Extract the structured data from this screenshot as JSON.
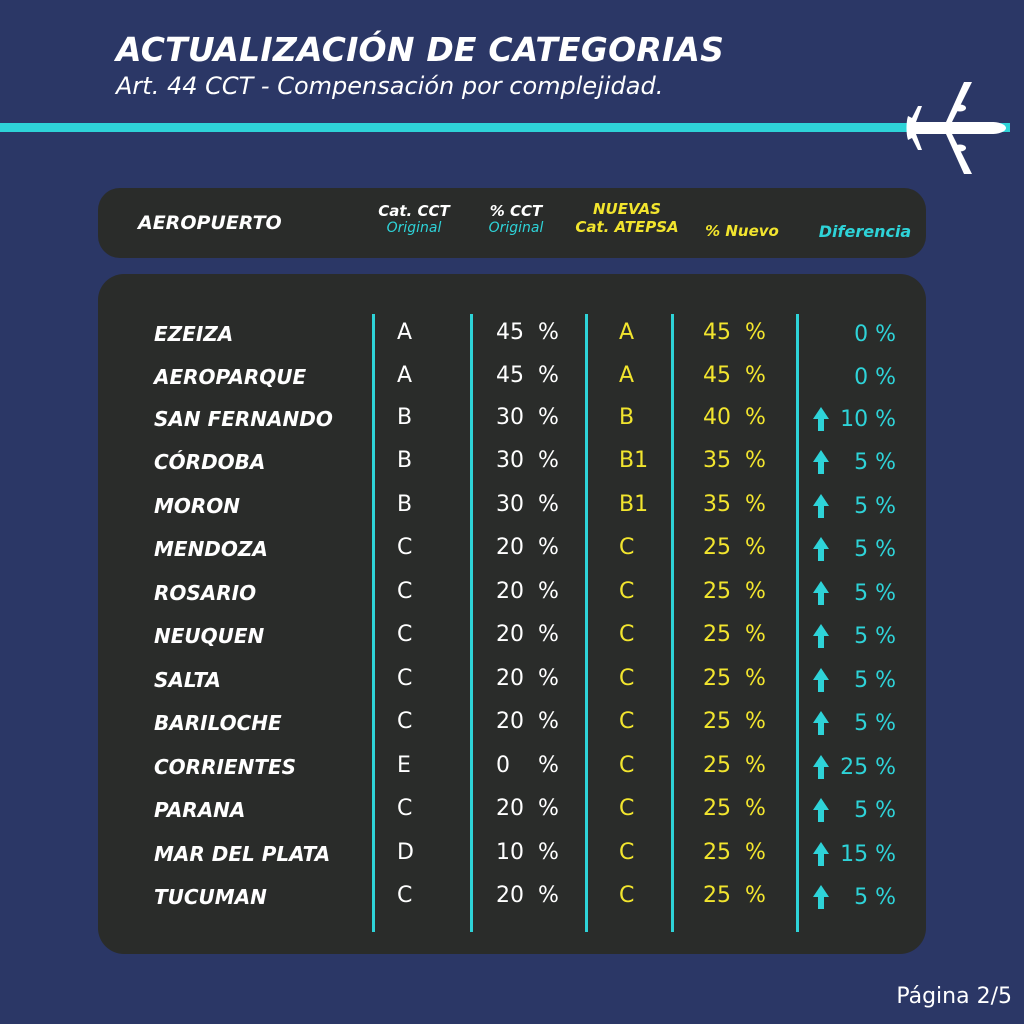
{
  "title": "ACTUALIZACIÓN DE CATEGORIAS",
  "subtitle": "Art. 44 CCT - Compensación por complejidad.",
  "colors": {
    "background": "#2b3766",
    "panel": "#2a2c2a",
    "accent": "#2ed3d8",
    "highlight": "#f2e52e"
  },
  "header": {
    "airport": "AEROPUERTO",
    "cat_cct": "Cat. CCT",
    "cat_cct_sub": "Original",
    "pct_cct": "% CCT",
    "pct_cct_sub": "Original",
    "new_cat_l1": "NUEVAS",
    "new_cat_l2": "Cat. ATEPSA",
    "pct_new": "% Nuevo",
    "diff": "Diferencia"
  },
  "rows": [
    {
      "airport": "EZEIZA",
      "cat": "A",
      "pct": "45  %",
      "new_cat": "A",
      "pct_new": "45  %",
      "diff": "0 %",
      "up": false
    },
    {
      "airport": "AEROPARQUE",
      "cat": "A",
      "pct": "45  %",
      "new_cat": "A",
      "pct_new": "45  %",
      "diff": "0 %",
      "up": false
    },
    {
      "airport": "SAN FERNANDO",
      "cat": "B",
      "pct": "30  %",
      "new_cat": "B",
      "pct_new": "40  %",
      "diff": "10 %",
      "up": true
    },
    {
      "airport": "CÓRDOBA",
      "cat": "B",
      "pct": "30  %",
      "new_cat": "B1",
      "pct_new": "35  %",
      "diff": "5 %",
      "up": true
    },
    {
      "airport": "MORON",
      "cat": "B",
      "pct": "30  %",
      "new_cat": "B1",
      "pct_new": "35  %",
      "diff": "5 %",
      "up": true
    },
    {
      "airport": "MENDOZA",
      "cat": "C",
      "pct": "20  %",
      "new_cat": "C",
      "pct_new": "25  %",
      "diff": "5 %",
      "up": true
    },
    {
      "airport": "ROSARIO",
      "cat": "C",
      "pct": "20  %",
      "new_cat": "C",
      "pct_new": "25  %",
      "diff": "5 %",
      "up": true
    },
    {
      "airport": "NEUQUEN",
      "cat": "C",
      "pct": "20  %",
      "new_cat": "C",
      "pct_new": "25  %",
      "diff": "5 %",
      "up": true
    },
    {
      "airport": "SALTA",
      "cat": "C",
      "pct": "20  %",
      "new_cat": "C",
      "pct_new": "25  %",
      "diff": "5 %",
      "up": true
    },
    {
      "airport": "BARILOCHE",
      "cat": "C",
      "pct": "20  %",
      "new_cat": "C",
      "pct_new": "25  %",
      "diff": "5 %",
      "up": true
    },
    {
      "airport": "CORRIENTES",
      "cat": "E",
      "pct": "0    %",
      "new_cat": "C",
      "pct_new": "25  %",
      "diff": "25 %",
      "up": true
    },
    {
      "airport": "PARANA",
      "cat": "C",
      "pct": "20  %",
      "new_cat": "C",
      "pct_new": "25  %",
      "diff": "5 %",
      "up": true
    },
    {
      "airport": "MAR DEL PLATA",
      "cat": "D",
      "pct": "10  %",
      "new_cat": "C",
      "pct_new": "25  %",
      "diff": "15 %",
      "up": true
    },
    {
      "airport": "TUCUMAN",
      "cat": "C",
      "pct": "20  %",
      "new_cat": "C",
      "pct_new": "25  %",
      "diff": "5 %",
      "up": true
    }
  ],
  "icons": {
    "decoration": "airplane-icon",
    "increase": "arrow-up-icon"
  },
  "page": "Página 2/5"
}
